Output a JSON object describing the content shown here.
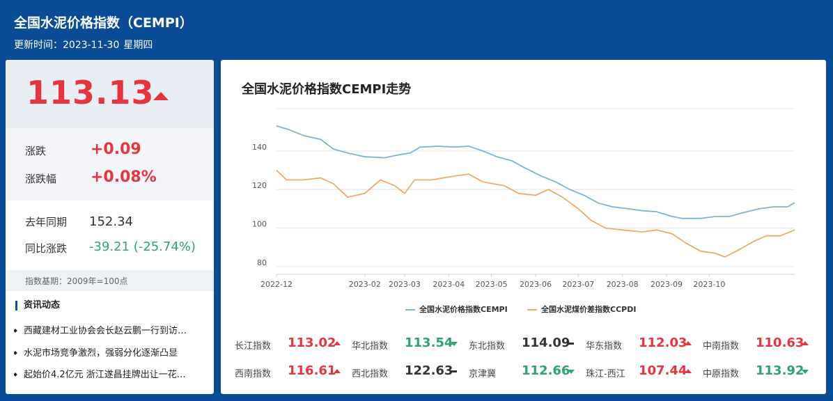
{
  "header": {
    "title": "全国水泥价格指数（CEMPI）",
    "update_label": "更新时间：2023-11-30",
    "weekday": "星期四"
  },
  "summary": {
    "price": "113.13",
    "trend": "up",
    "change_label": "涨跌",
    "change_value": "+0.09",
    "pct_label": "涨跌幅",
    "pct_value": "+0.08%",
    "last_year_label": "去年同期",
    "last_year_value": "152.34",
    "yoy_label": "同比涨跌",
    "yoy_value": "-39.21 (-25.74%)",
    "base_note": "指数基期：2009年=100点"
  },
  "news": {
    "title": "资讯动态",
    "items": [
      "西藏建材工业协会会长赵云鹏一行到访…",
      "水泥市场竞争激烈，强弱分化逐渐凸显",
      "起始价4.2亿元 浙江遂昌挂牌出让一花…"
    ]
  },
  "chart_data": {
    "type": "line",
    "title": "全国水泥价格指数CEMPI走势",
    "x_ticks": [
      "2022-12",
      "2023-02",
      "2023-03",
      "2023-04",
      "2023-05",
      "2023-06",
      "2023-07",
      "2023-08",
      "2023-09",
      "2023-10"
    ],
    "y_ticks": [
      80,
      100,
      120,
      140
    ],
    "ylim": [
      76,
      162
    ],
    "x_start": "2022-12-01",
    "x_end": "2023-11-30",
    "series": [
      {
        "name": "全国水泥价格指数CEMPI",
        "color": "#7ab3e0",
        "points": [
          [
            "2022-12-01",
            153
          ],
          [
            "2022-12-10",
            151
          ],
          [
            "2022-12-20",
            148
          ],
          [
            "2023-01-01",
            146
          ],
          [
            "2023-01-10",
            141
          ],
          [
            "2023-01-20",
            139
          ],
          [
            "2023-02-01",
            137
          ],
          [
            "2023-02-15",
            136.5
          ],
          [
            "2023-02-25",
            138
          ],
          [
            "2023-03-05",
            139
          ],
          [
            "2023-03-12",
            142
          ],
          [
            "2023-03-25",
            142.5
          ],
          [
            "2023-04-05",
            142
          ],
          [
            "2023-04-15",
            142.5
          ],
          [
            "2023-04-25",
            140
          ],
          [
            "2023-05-05",
            137
          ],
          [
            "2023-05-15",
            135
          ],
          [
            "2023-05-25",
            131
          ],
          [
            "2023-06-05",
            127
          ],
          [
            "2023-06-15",
            124
          ],
          [
            "2023-06-25",
            120
          ],
          [
            "2023-07-05",
            117
          ],
          [
            "2023-07-15",
            113
          ],
          [
            "2023-07-25",
            111
          ],
          [
            "2023-08-05",
            110
          ],
          [
            "2023-08-15",
            109
          ],
          [
            "2023-08-25",
            108.5
          ],
          [
            "2023-09-05",
            106
          ],
          [
            "2023-09-12",
            105
          ],
          [
            "2023-09-25",
            105
          ],
          [
            "2023-10-05",
            106
          ],
          [
            "2023-10-15",
            106
          ],
          [
            "2023-10-25",
            108
          ],
          [
            "2023-11-05",
            110
          ],
          [
            "2023-11-15",
            111
          ],
          [
            "2023-11-25",
            111
          ],
          [
            "2023-11-30",
            113.13
          ]
        ]
      },
      {
        "name": "全国水泥煤价差指数CCPDI",
        "color": "#f5a860",
        "points": [
          [
            "2022-12-01",
            130
          ],
          [
            "2022-12-08",
            125
          ],
          [
            "2022-12-20",
            125
          ],
          [
            "2023-01-01",
            126
          ],
          [
            "2023-01-10",
            123
          ],
          [
            "2023-01-20",
            116
          ],
          [
            "2023-02-01",
            118
          ],
          [
            "2023-02-12",
            125
          ],
          [
            "2023-02-22",
            122
          ],
          [
            "2023-03-01",
            118
          ],
          [
            "2023-03-08",
            125
          ],
          [
            "2023-03-20",
            125
          ],
          [
            "2023-04-05",
            127
          ],
          [
            "2023-04-15",
            128
          ],
          [
            "2023-04-25",
            124
          ],
          [
            "2023-05-10",
            122
          ],
          [
            "2023-05-20",
            118
          ],
          [
            "2023-06-01",
            117
          ],
          [
            "2023-06-10",
            120
          ],
          [
            "2023-06-20",
            116
          ],
          [
            "2023-07-01",
            110
          ],
          [
            "2023-07-10",
            104
          ],
          [
            "2023-07-20",
            100
          ],
          [
            "2023-08-01",
            99
          ],
          [
            "2023-08-15",
            98
          ],
          [
            "2023-08-25",
            99
          ],
          [
            "2023-09-05",
            97
          ],
          [
            "2023-09-15",
            92
          ],
          [
            "2023-09-25",
            88
          ],
          [
            "2023-10-05",
            87
          ],
          [
            "2023-10-12",
            85
          ],
          [
            "2023-10-20",
            88
          ],
          [
            "2023-11-01",
            93
          ],
          [
            "2023-11-10",
            96
          ],
          [
            "2023-11-20",
            96
          ],
          [
            "2023-11-30",
            99
          ]
        ]
      }
    ]
  },
  "regions": [
    {
      "name": "长江指数",
      "value": "113.02",
      "trend": "up"
    },
    {
      "name": "华北指数",
      "value": "113.54",
      "trend": "down"
    },
    {
      "name": "东北指数",
      "value": "114.09",
      "trend": "flat"
    },
    {
      "name": "华东指数",
      "value": "112.03",
      "trend": "up"
    },
    {
      "name": "中南指数",
      "value": "110.63",
      "trend": "up"
    },
    {
      "name": "西南指数",
      "value": "116.61",
      "trend": "up"
    },
    {
      "name": "西北指数",
      "value": "122.63",
      "trend": "flat"
    },
    {
      "name": "京津冀",
      "value": "112.66",
      "trend": "down"
    },
    {
      "name": "珠江-西江",
      "value": "107.44",
      "trend": "up"
    },
    {
      "name": "中原指数",
      "value": "113.92",
      "trend": "down"
    }
  ]
}
